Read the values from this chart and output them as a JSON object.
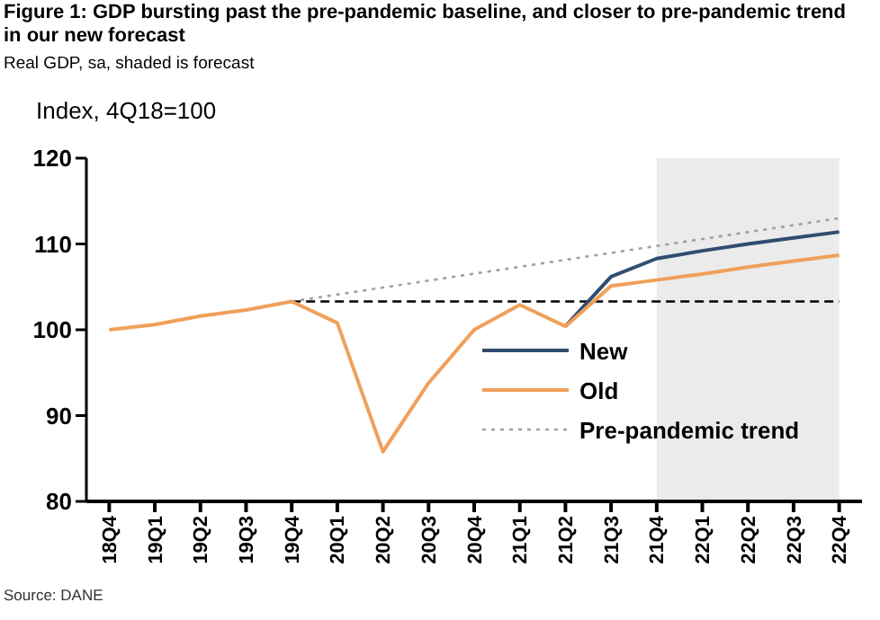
{
  "chart_data": {
    "type": "line",
    "title": "Figure 1: GDP bursting past the pre-pandemic baseline, and closer to pre-pandemic trend in our new forecast",
    "subtitle": "Real GDP, sa, shaded is forecast",
    "ylabel": "Index, 4Q18=100",
    "categories": [
      "18Q4",
      "19Q1",
      "19Q2",
      "19Q3",
      "19Q4",
      "20Q1",
      "20Q2",
      "20Q3",
      "20Q4",
      "21Q1",
      "21Q2",
      "21Q3",
      "21Q4",
      "22Q1",
      "22Q2",
      "22Q3",
      "22Q4"
    ],
    "series": [
      {
        "name": "New",
        "color": "#2f4d6e",
        "line_style": "solid",
        "values": [
          null,
          null,
          null,
          null,
          null,
          null,
          null,
          null,
          null,
          null,
          100.4,
          106.2,
          108.3,
          109.2,
          110.0,
          110.7,
          111.4
        ]
      },
      {
        "name": "Old",
        "color": "#f0a05a",
        "line_style": "solid",
        "values": [
          100,
          100.6,
          101.6,
          102.3,
          103.3,
          100.8,
          85.8,
          93.8,
          100,
          102.9,
          100.4,
          105.1,
          105.8,
          106.5,
          107.3,
          108.0,
          108.7
        ]
      },
      {
        "name": "Pre-pandemic trend",
        "color": "#a0a0a0",
        "line_style": "dotted",
        "values": [
          null,
          null,
          null,
          null,
          103.3,
          null,
          null,
          null,
          null,
          null,
          null,
          null,
          null,
          null,
          null,
          null,
          113.0
        ]
      },
      {
        "color": "#000000",
        "line_style": "dashed",
        "values": [
          null,
          null,
          null,
          null,
          103.3,
          103.3,
          103.3,
          103.3,
          103.3,
          103.3,
          103.3,
          103.3,
          103.3,
          103.3,
          103.3,
          103.3,
          103.3
        ]
      }
    ],
    "bands": [
      {
        "axis": "x",
        "from": "21Q4",
        "to": "22Q4",
        "color": "#ebebeb"
      }
    ],
    "ylim": [
      80,
      120
    ],
    "yticks": [
      80,
      90,
      100,
      110,
      120
    ],
    "legend": "right",
    "marker": "none",
    "annotations": [
      "Source: DANE"
    ]
  }
}
